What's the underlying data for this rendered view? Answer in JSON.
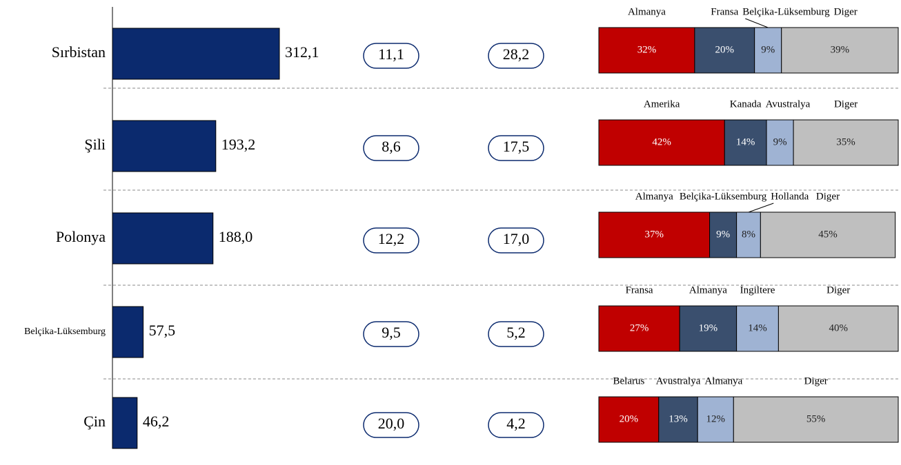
{
  "chart_data": [
    {
      "type": "bar",
      "orientation": "horizontal",
      "categories": [
        "Sırbistan",
        "Şili",
        "Polonya",
        "Belçika-Lüksemburg",
        "Çin"
      ],
      "values": [
        312.1,
        193.2,
        188.0,
        57.5,
        46.2
      ],
      "value_labels": [
        "312,1",
        "193,2",
        "188,0",
        "57,5",
        "46,2"
      ],
      "color": "#0b2a6e"
    },
    {
      "type": "stacked_bar",
      "xlim": [
        0,
        100
      ],
      "colors": [
        "#c00000",
        "#3a4f6e",
        "#9fb3d3",
        "#bfbfbf"
      ],
      "rows": [
        {
          "names": [
            "Almanya",
            "Fransa",
            "Belçika-Lüksemburg",
            "Diger"
          ],
          "values": [
            32,
            20,
            9,
            39
          ],
          "value_labels": [
            "32%",
            "20%",
            "9%",
            "39%"
          ]
        },
        {
          "names": [
            "Amerika",
            "Kanada",
            "Avustralya",
            "Diger"
          ],
          "values": [
            42,
            14,
            9,
            35
          ],
          "value_labels": [
            "42%",
            "14%",
            "9%",
            "35%"
          ]
        },
        {
          "names": [
            "Almanya",
            "Belçika-Lüksemburg",
            "Hollanda",
            "Diger"
          ],
          "values": [
            37,
            9,
            8,
            45
          ],
          "value_labels": [
            "37%",
            "9%",
            "8%",
            "45%"
          ]
        },
        {
          "names": [
            "Fransa",
            "Almanya",
            "İngiltere",
            "Diger"
          ],
          "values": [
            27,
            19,
            14,
            40
          ],
          "value_labels": [
            "27%",
            "19%",
            "14%",
            "40%"
          ]
        },
        {
          "names": [
            "Belarus",
            "Avustralya",
            "Almanya",
            "Diger"
          ],
          "values": [
            20,
            13,
            12,
            55
          ],
          "value_labels": [
            "20%",
            "13%",
            "12%",
            "55%"
          ]
        }
      ]
    }
  ],
  "table": {
    "columns": [
      [
        "11,1",
        "8,6",
        "12,2",
        "9,5",
        "20,0"
      ],
      [
        "28,2",
        "17,5",
        "17,0",
        "5,2",
        "4,2"
      ]
    ]
  }
}
